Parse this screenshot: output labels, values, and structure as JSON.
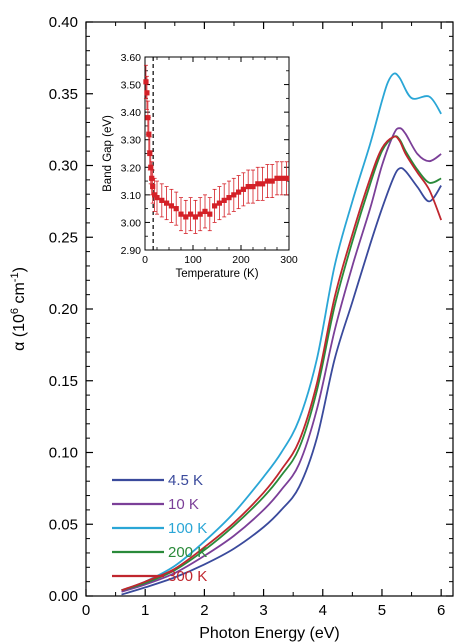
{
  "chart_data": [
    {
      "type": "line",
      "xlabel": "Photon Energy (eV)",
      "ylabel_prefix": "α (10",
      "ylabel_sup1": "6",
      "ylabel_mid": " cm",
      "ylabel_sup2": "-1",
      "ylabel_suffix": ")",
      "xlim": [
        0,
        6.2
      ],
      "ylim": [
        0,
        0.4
      ],
      "xticks": [
        0,
        1,
        2,
        3,
        4,
        5,
        6
      ],
      "xtick_labels": [
        "0",
        "1",
        "2",
        "3",
        "4",
        "5",
        "6"
      ],
      "yticks": [
        0,
        0.05,
        0.1,
        0.15,
        0.2,
        0.25,
        0.3,
        0.35,
        0.4
      ],
      "ytick_labels": [
        "0.00",
        "0.05",
        "0.10",
        "0.15",
        "0.20",
        "0.25",
        "0.30",
        "0.35",
        "0.40"
      ],
      "legend_position": "lower-left",
      "series": [
        {
          "name": "4.5 K",
          "color": "#3a4a9c",
          "x": [
            0.6,
            1.0,
            1.5,
            2.0,
            2.5,
            3.0,
            3.3,
            3.6,
            3.9,
            4.2,
            4.5,
            4.8,
            5.0,
            5.2,
            5.3,
            5.4,
            5.6,
            5.8,
            6.0
          ],
          "y": [
            0.001,
            0.006,
            0.013,
            0.022,
            0.033,
            0.048,
            0.06,
            0.076,
            0.11,
            0.165,
            0.205,
            0.245,
            0.27,
            0.292,
            0.298,
            0.296,
            0.285,
            0.275,
            0.286
          ]
        },
        {
          "name": "10 K",
          "color": "#7b3f98",
          "x": [
            0.6,
            1.0,
            1.5,
            2.0,
            2.5,
            3.0,
            3.3,
            3.6,
            3.9,
            4.2,
            4.5,
            4.8,
            5.0,
            5.2,
            5.3,
            5.4,
            5.6,
            5.8,
            6.0
          ],
          "y": [
            0.003,
            0.008,
            0.016,
            0.028,
            0.042,
            0.06,
            0.074,
            0.092,
            0.13,
            0.185,
            0.23,
            0.27,
            0.3,
            0.322,
            0.326,
            0.322,
            0.308,
            0.303,
            0.308
          ]
        },
        {
          "name": "100 K",
          "color": "#2aa6d6",
          "x": [
            0.6,
            1.0,
            1.5,
            2.0,
            2.5,
            3.0,
            3.3,
            3.6,
            3.9,
            4.2,
            4.5,
            4.8,
            5.0,
            5.1,
            5.2,
            5.3,
            5.5,
            5.8,
            6.0
          ],
          "y": [
            0.004,
            0.01,
            0.021,
            0.038,
            0.058,
            0.083,
            0.1,
            0.123,
            0.165,
            0.23,
            0.275,
            0.315,
            0.345,
            0.358,
            0.364,
            0.361,
            0.347,
            0.348,
            0.336
          ]
        },
        {
          "name": "200 K",
          "color": "#2a8a3a",
          "x": [
            0.6,
            1.0,
            1.5,
            2.0,
            2.5,
            3.0,
            3.3,
            3.6,
            3.9,
            4.2,
            4.5,
            4.8,
            5.0,
            5.2,
            5.3,
            5.4,
            5.6,
            5.8,
            6.0
          ],
          "y": [
            0.004,
            0.009,
            0.018,
            0.032,
            0.049,
            0.069,
            0.084,
            0.103,
            0.143,
            0.202,
            0.247,
            0.287,
            0.31,
            0.32,
            0.318,
            0.31,
            0.297,
            0.288,
            0.291
          ]
        },
        {
          "name": "300 K",
          "color": "#c0262e",
          "x": [
            0.6,
            1.0,
            1.5,
            2.0,
            2.5,
            3.0,
            3.3,
            3.6,
            3.9,
            4.2,
            4.5,
            4.8,
            5.0,
            5.2,
            5.3,
            5.4,
            5.6,
            5.8,
            6.0
          ],
          "y": [
            0.004,
            0.01,
            0.019,
            0.034,
            0.051,
            0.072,
            0.088,
            0.108,
            0.148,
            0.208,
            0.252,
            0.291,
            0.312,
            0.32,
            0.317,
            0.308,
            0.295,
            0.283,
            0.262
          ]
        }
      ]
    },
    {
      "type": "scatter",
      "inset": true,
      "xlabel": "Temperature (K)",
      "ylabel": "Band Gap (eV)",
      "xlim": [
        0,
        300
      ],
      "ylim": [
        2.9,
        3.6
      ],
      "xticks": [
        0,
        100,
        200,
        300
      ],
      "xtick_labels": [
        "0",
        "100",
        "200",
        "300"
      ],
      "yticks": [
        2.9,
        3.0,
        3.1,
        3.2,
        3.3,
        3.4,
        3.5,
        3.6
      ],
      "ytick_labels": [
        "2.90",
        "3.00",
        "3.10",
        "3.20",
        "3.30",
        "3.40",
        "3.50",
        "3.60"
      ],
      "reference_line_x": 17,
      "marker_color": "#d42027",
      "points": [
        {
          "x": 2,
          "y": 3.51,
          "err": 0.06
        },
        {
          "x": 4,
          "y": 3.47,
          "err": 0.06
        },
        {
          "x": 6,
          "y": 3.38,
          "err": 0.06
        },
        {
          "x": 8,
          "y": 3.32,
          "err": 0.06
        },
        {
          "x": 10,
          "y": 3.25,
          "err": 0.06
        },
        {
          "x": 12,
          "y": 3.2,
          "err": 0.06
        },
        {
          "x": 14,
          "y": 3.16,
          "err": 0.06
        },
        {
          "x": 16,
          "y": 3.13,
          "err": 0.06
        },
        {
          "x": 20,
          "y": 3.1,
          "err": 0.06
        },
        {
          "x": 25,
          "y": 3.09,
          "err": 0.06
        },
        {
          "x": 35,
          "y": 3.08,
          "err": 0.06
        },
        {
          "x": 45,
          "y": 3.07,
          "err": 0.06
        },
        {
          "x": 55,
          "y": 3.06,
          "err": 0.06
        },
        {
          "x": 65,
          "y": 3.05,
          "err": 0.06
        },
        {
          "x": 75,
          "y": 3.03,
          "err": 0.06
        },
        {
          "x": 85,
          "y": 3.02,
          "err": 0.06
        },
        {
          "x": 95,
          "y": 3.03,
          "err": 0.06
        },
        {
          "x": 105,
          "y": 3.02,
          "err": 0.06
        },
        {
          "x": 115,
          "y": 3.03,
          "err": 0.06
        },
        {
          "x": 125,
          "y": 3.04,
          "err": 0.06
        },
        {
          "x": 135,
          "y": 3.03,
          "err": 0.06
        },
        {
          "x": 145,
          "y": 3.06,
          "err": 0.06
        },
        {
          "x": 155,
          "y": 3.07,
          "err": 0.06
        },
        {
          "x": 165,
          "y": 3.08,
          "err": 0.06
        },
        {
          "x": 175,
          "y": 3.09,
          "err": 0.06
        },
        {
          "x": 185,
          "y": 3.1,
          "err": 0.06
        },
        {
          "x": 195,
          "y": 3.11,
          "err": 0.06
        },
        {
          "x": 205,
          "y": 3.12,
          "err": 0.06
        },
        {
          "x": 215,
          "y": 3.13,
          "err": 0.06
        },
        {
          "x": 225,
          "y": 3.13,
          "err": 0.06
        },
        {
          "x": 235,
          "y": 3.14,
          "err": 0.06
        },
        {
          "x": 245,
          "y": 3.14,
          "err": 0.06
        },
        {
          "x": 255,
          "y": 3.15,
          "err": 0.06
        },
        {
          "x": 265,
          "y": 3.15,
          "err": 0.06
        },
        {
          "x": 275,
          "y": 3.16,
          "err": 0.06
        },
        {
          "x": 285,
          "y": 3.16,
          "err": 0.06
        },
        {
          "x": 295,
          "y": 3.16,
          "err": 0.06
        }
      ]
    }
  ]
}
